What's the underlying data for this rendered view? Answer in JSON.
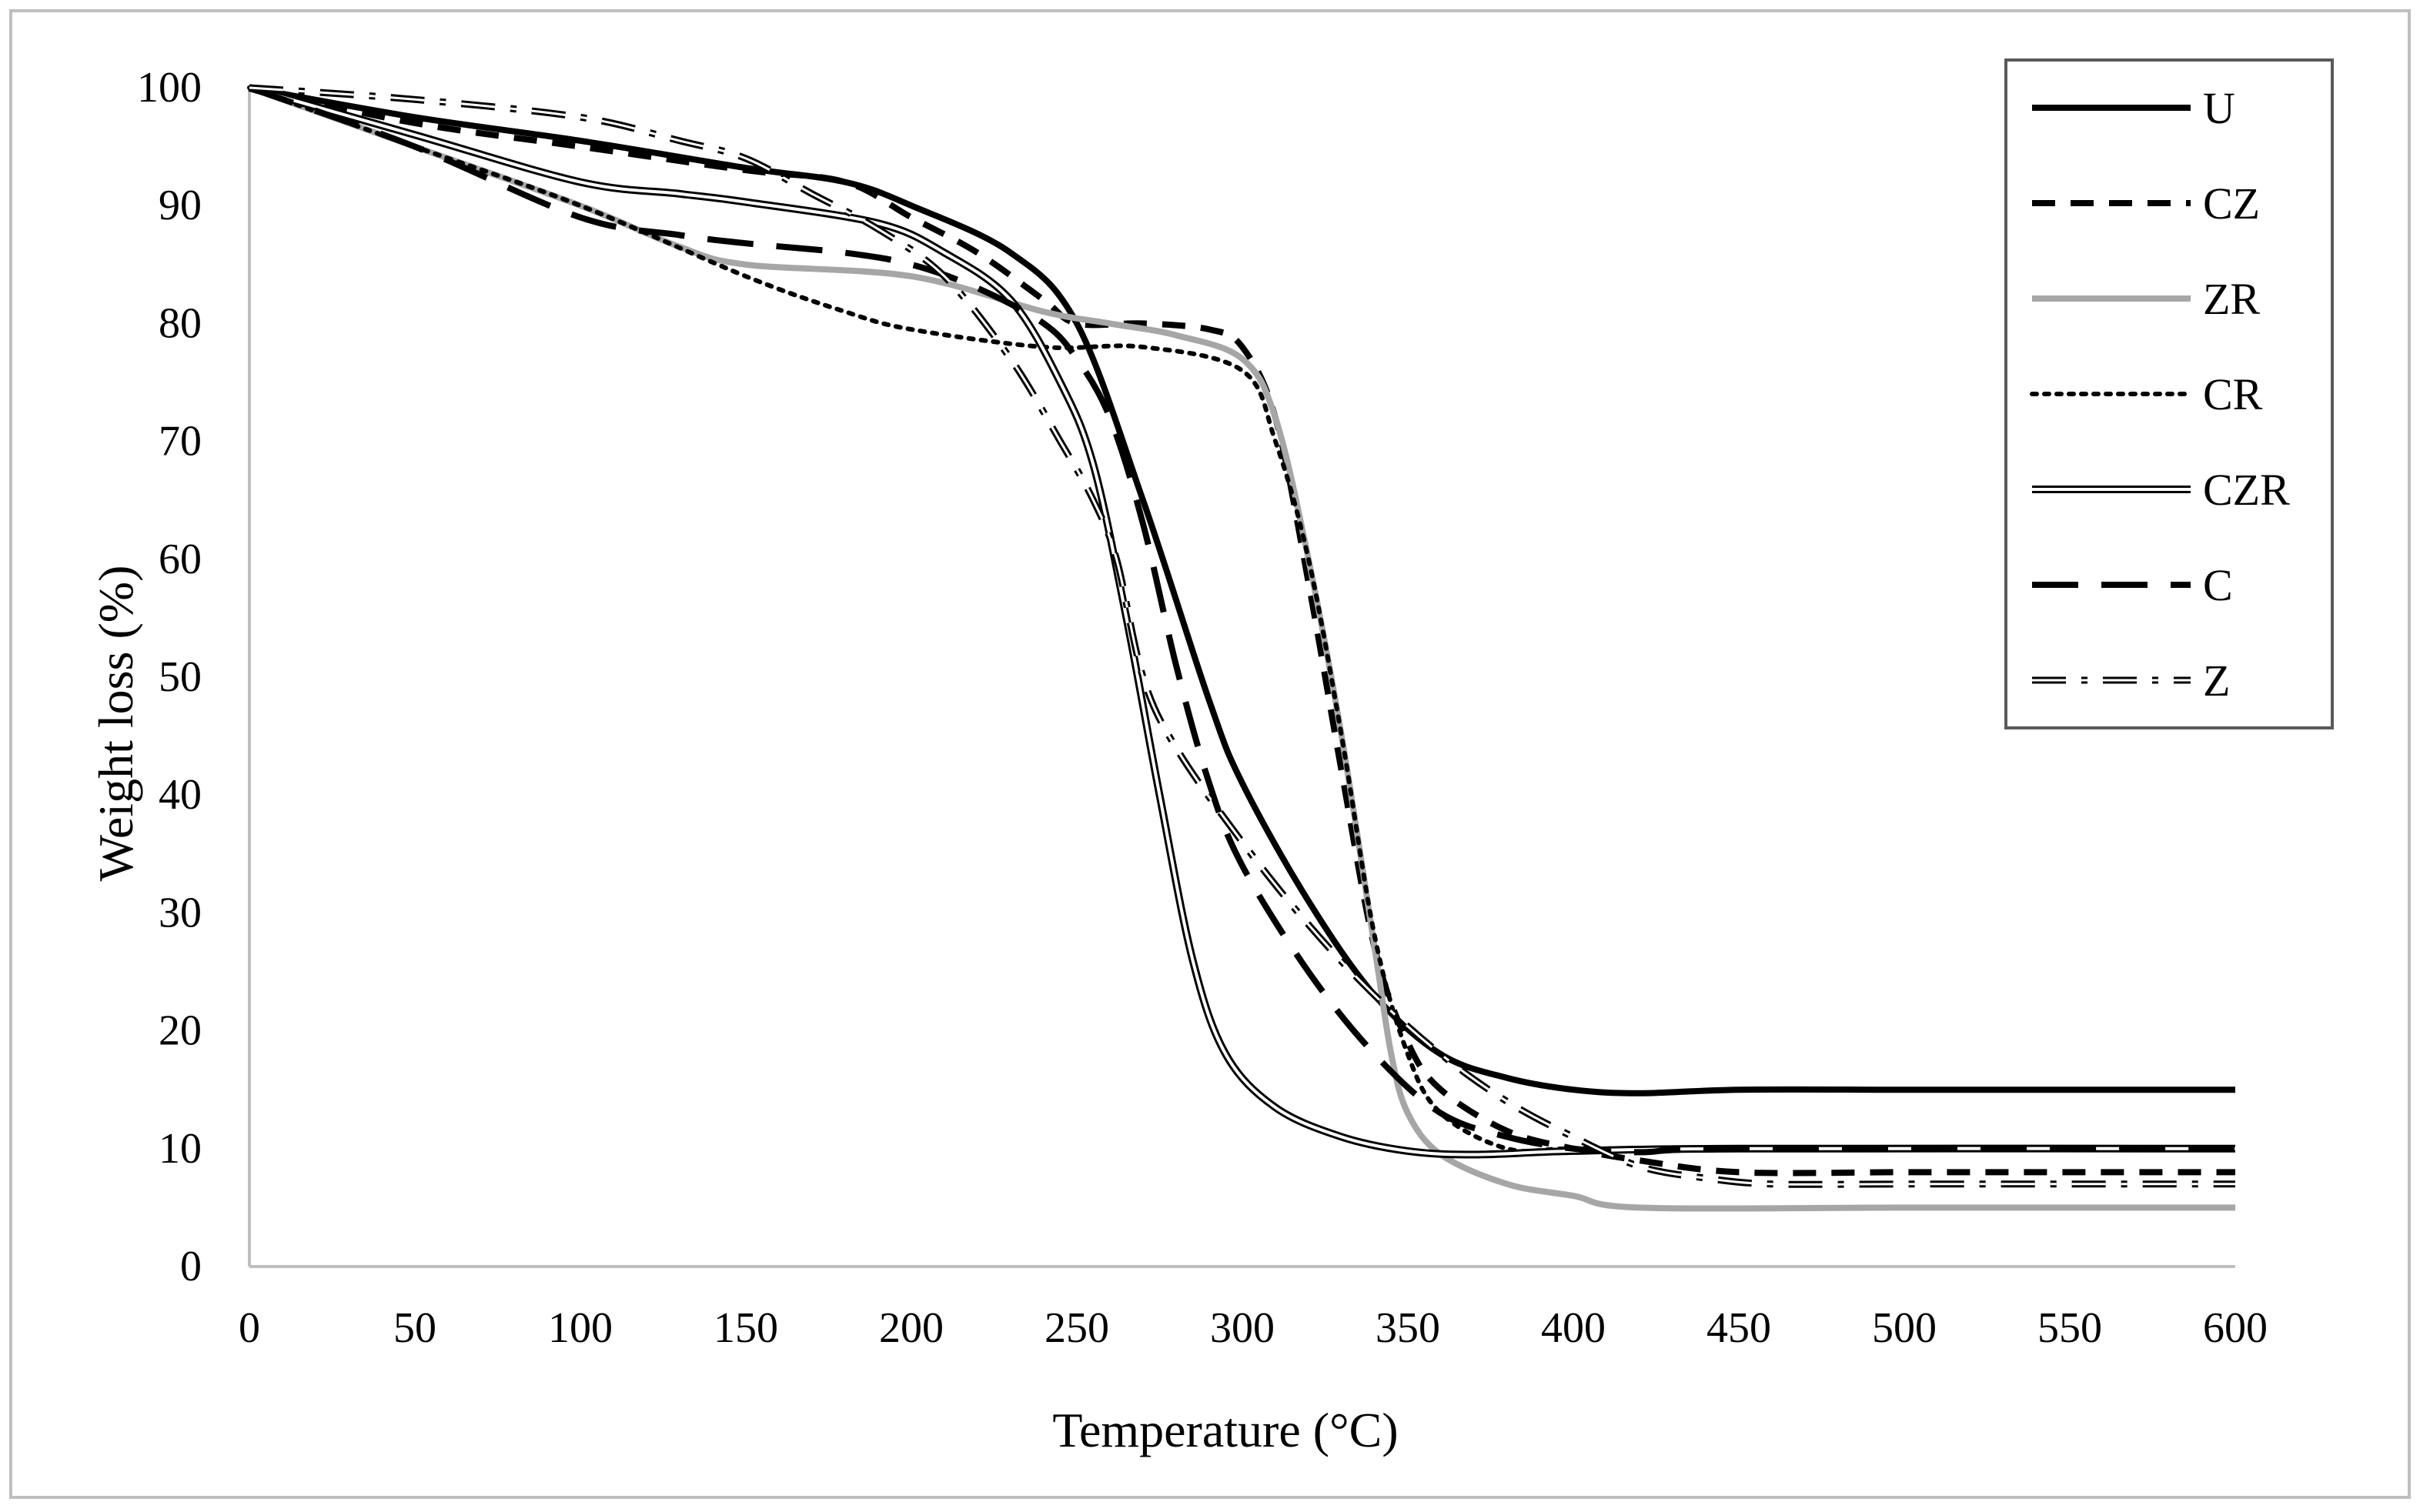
{
  "chart_data": {
    "type": "line",
    "title": "",
    "xlabel": "Temperature (°C)",
    "ylabel": "Weight loss (%)",
    "xlim": [
      0,
      600
    ],
    "ylim": [
      0,
      100
    ],
    "xticks": [
      0,
      50,
      100,
      150,
      200,
      250,
      300,
      350,
      400,
      450,
      500,
      550,
      600
    ],
    "yticks": [
      0,
      10,
      20,
      30,
      40,
      50,
      60,
      70,
      80,
      90,
      100
    ],
    "x_tick_labels": [
      "0",
      "50",
      "100",
      "150",
      "200",
      "250",
      "300",
      "350",
      "400",
      "450",
      "500",
      "550",
      "600"
    ],
    "y_tick_labels": [
      "0",
      "10",
      "20",
      "30",
      "40",
      "50",
      "60",
      "70",
      "80",
      "90",
      "100"
    ],
    "grid": false,
    "legend_position": "top-right",
    "series": [
      {
        "name": "U",
        "style": "solid-thick",
        "color": "#000000",
        "points": [
          [
            0,
            100
          ],
          [
            50,
            97.5
          ],
          [
            100,
            95.5
          ],
          [
            150,
            93.2
          ],
          [
            180,
            92
          ],
          [
            200,
            90
          ],
          [
            230,
            86
          ],
          [
            250,
            80
          ],
          [
            270,
            65
          ],
          [
            290,
            48
          ],
          [
            300,
            41
          ],
          [
            320,
            31
          ],
          [
            340,
            23
          ],
          [
            360,
            18
          ],
          [
            380,
            16
          ],
          [
            400,
            15
          ],
          [
            420,
            14.7
          ],
          [
            450,
            15
          ],
          [
            500,
            15
          ],
          [
            550,
            15
          ],
          [
            600,
            15
          ]
        ]
      },
      {
        "name": "CZ",
        "style": "dashed-short",
        "color": "#000000",
        "points": [
          [
            0,
            100
          ],
          [
            50,
            97
          ],
          [
            100,
            95
          ],
          [
            150,
            93
          ],
          [
            180,
            92
          ],
          [
            200,
            89
          ],
          [
            220,
            86
          ],
          [
            240,
            82
          ],
          [
            250,
            80
          ],
          [
            270,
            80
          ],
          [
            290,
            79.5
          ],
          [
            300,
            78
          ],
          [
            310,
            72
          ],
          [
            320,
            58
          ],
          [
            330,
            42
          ],
          [
            340,
            27
          ],
          [
            350,
            19
          ],
          [
            360,
            15
          ],
          [
            380,
            11.5
          ],
          [
            400,
            10
          ],
          [
            420,
            9
          ],
          [
            450,
            8
          ],
          [
            500,
            8
          ],
          [
            550,
            8
          ],
          [
            600,
            8
          ]
        ]
      },
      {
        "name": "ZR",
        "style": "solid-gray",
        "color": "#a6a6a6",
        "points": [
          [
            0,
            100
          ],
          [
            50,
            95
          ],
          [
            100,
            90
          ],
          [
            130,
            86.5
          ],
          [
            150,
            85
          ],
          [
            200,
            84
          ],
          [
            240,
            81
          ],
          [
            260,
            80
          ],
          [
            280,
            79
          ],
          [
            300,
            77
          ],
          [
            310,
            72
          ],
          [
            320,
            60
          ],
          [
            330,
            45
          ],
          [
            340,
            27
          ],
          [
            345,
            18
          ],
          [
            350,
            13
          ],
          [
            360,
            9.5
          ],
          [
            380,
            7
          ],
          [
            400,
            6
          ],
          [
            420,
            5
          ],
          [
            500,
            5
          ],
          [
            550,
            5
          ],
          [
            600,
            5
          ]
        ]
      },
      {
        "name": "CR",
        "style": "dotted",
        "color": "#000000",
        "points": [
          [
            0,
            100
          ],
          [
            50,
            95
          ],
          [
            100,
            90
          ],
          [
            150,
            84
          ],
          [
            180,
            81
          ],
          [
            200,
            79.5
          ],
          [
            240,
            78
          ],
          [
            270,
            78
          ],
          [
            300,
            76
          ],
          [
            310,
            70
          ],
          [
            320,
            60
          ],
          [
            330,
            45
          ],
          [
            340,
            28
          ],
          [
            350,
            18
          ],
          [
            360,
            13
          ],
          [
            380,
            10
          ],
          [
            400,
            10
          ],
          [
            450,
            10
          ],
          [
            500,
            10
          ],
          [
            550,
            10
          ],
          [
            600,
            10
          ]
        ]
      },
      {
        "name": "CZR",
        "style": "double",
        "color": "#000000",
        "points": [
          [
            0,
            100
          ],
          [
            50,
            96
          ],
          [
            100,
            92
          ],
          [
            130,
            91
          ],
          [
            150,
            90.3
          ],
          [
            190,
            88.5
          ],
          [
            210,
            86
          ],
          [
            230,
            82
          ],
          [
            245,
            75
          ],
          [
            255,
            68
          ],
          [
            265,
            55
          ],
          [
            275,
            40
          ],
          [
            285,
            26
          ],
          [
            295,
            18
          ],
          [
            310,
            13.5
          ],
          [
            330,
            11
          ],
          [
            350,
            9.8
          ],
          [
            370,
            9.5
          ],
          [
            400,
            9.8
          ],
          [
            450,
            10
          ],
          [
            600,
            10
          ]
        ]
      },
      {
        "name": "C",
        "style": "dashed-long",
        "color": "#000000",
        "points": [
          [
            0,
            100
          ],
          [
            50,
            95
          ],
          [
            100,
            89
          ],
          [
            130,
            87.5
          ],
          [
            150,
            86.8
          ],
          [
            180,
            86
          ],
          [
            200,
            85
          ],
          [
            220,
            83
          ],
          [
            240,
            80
          ],
          [
            250,
            77
          ],
          [
            260,
            72
          ],
          [
            270,
            63
          ],
          [
            280,
            51
          ],
          [
            290,
            41
          ],
          [
            300,
            34
          ],
          [
            320,
            25
          ],
          [
            340,
            18
          ],
          [
            360,
            13
          ],
          [
            380,
            11
          ],
          [
            400,
            10
          ],
          [
            420,
            9.7
          ],
          [
            450,
            10
          ],
          [
            600,
            10
          ]
        ]
      },
      {
        "name": "Z",
        "style": "dash-dot-double",
        "color": "#000000",
        "points": [
          [
            0,
            100
          ],
          [
            50,
            99
          ],
          [
            100,
            97.5
          ],
          [
            130,
            95.5
          ],
          [
            150,
            94
          ],
          [
            170,
            91
          ],
          [
            190,
            88
          ],
          [
            210,
            84
          ],
          [
            230,
            77
          ],
          [
            245,
            70
          ],
          [
            255,
            65
          ],
          [
            262,
            60
          ],
          [
            270,
            50
          ],
          [
            280,
            44
          ],
          [
            300,
            36
          ],
          [
            320,
            29
          ],
          [
            340,
            23
          ],
          [
            360,
            18
          ],
          [
            380,
            14
          ],
          [
            400,
            11
          ],
          [
            420,
            8.5
          ],
          [
            440,
            7.5
          ],
          [
            460,
            7
          ],
          [
            500,
            7
          ],
          [
            550,
            7
          ],
          [
            600,
            7
          ]
        ]
      }
    ]
  }
}
